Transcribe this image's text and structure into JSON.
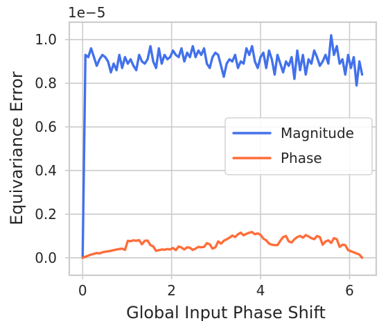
{
  "chart_data": {
    "type": "line",
    "title": "",
    "xlabel": "Global Input Phase Shift",
    "ylabel": "Equivariance Error",
    "offset_label": "1e−5",
    "xlim": [
      -0.3,
      6.6
    ],
    "ylim": [
      -0.08,
      1.08
    ],
    "xticks": [
      0,
      2,
      4,
      6
    ],
    "xtick_labels": [
      "0",
      "2",
      "4",
      "6"
    ],
    "yticks": [
      0.0,
      0.2,
      0.4,
      0.6,
      0.8,
      1.0
    ],
    "ytick_labels": [
      "0.0",
      "0.2",
      "0.4",
      "0.6",
      "0.8",
      "1.0"
    ],
    "grid": true,
    "legend_position": "center-right",
    "x": [
      0.0,
      0.063,
      0.127,
      0.19,
      0.254,
      0.317,
      0.381,
      0.444,
      0.508,
      0.571,
      0.635,
      0.698,
      0.762,
      0.825,
      0.889,
      0.952,
      1.016,
      1.079,
      1.143,
      1.206,
      1.27,
      1.333,
      1.397,
      1.46,
      1.524,
      1.587,
      1.651,
      1.714,
      1.778,
      1.841,
      1.905,
      1.968,
      2.032,
      2.095,
      2.159,
      2.222,
      2.286,
      2.349,
      2.412,
      2.476,
      2.539,
      2.603,
      2.666,
      2.73,
      2.793,
      2.857,
      2.92,
      2.984,
      3.047,
      3.111,
      3.174,
      3.238,
      3.301,
      3.365,
      3.428,
      3.492,
      3.555,
      3.619,
      3.682,
      3.746,
      3.809,
      3.873,
      3.936,
      4.0,
      4.063,
      4.127,
      4.19,
      4.253,
      4.317,
      4.38,
      4.444,
      4.507,
      4.571,
      4.634,
      4.698,
      4.761,
      4.825,
      4.888,
      4.952,
      5.015,
      5.079,
      5.142,
      5.206,
      5.269,
      5.333,
      5.396,
      5.46,
      5.523,
      5.587,
      5.65,
      5.714,
      5.777,
      5.841,
      5.904,
      5.968,
      6.031,
      6.095,
      6.158,
      6.222,
      6.283
    ],
    "series": [
      {
        "name": "Magnitude",
        "color": "#4271eb",
        "values": [
          0.0,
          0.93,
          0.92,
          0.96,
          0.92,
          0.88,
          0.91,
          0.93,
          0.92,
          0.9,
          0.85,
          0.89,
          0.86,
          0.93,
          0.87,
          0.92,
          0.89,
          0.91,
          0.88,
          0.86,
          0.93,
          0.9,
          0.89,
          0.91,
          0.97,
          0.9,
          0.87,
          0.96,
          0.89,
          0.93,
          0.91,
          0.92,
          0.95,
          0.93,
          0.92,
          0.96,
          0.9,
          0.94,
          0.92,
          0.97,
          0.92,
          0.95,
          0.93,
          0.96,
          0.89,
          0.87,
          0.92,
          0.94,
          0.93,
          0.88,
          0.83,
          0.89,
          0.91,
          0.9,
          0.93,
          0.87,
          0.9,
          0.89,
          0.96,
          0.93,
          0.97,
          0.9,
          0.87,
          0.92,
          0.94,
          0.87,
          0.95,
          0.91,
          0.84,
          0.93,
          0.89,
          0.85,
          0.9,
          0.88,
          0.92,
          0.82,
          0.95,
          0.86,
          0.93,
          0.84,
          0.91,
          0.89,
          0.95,
          0.92,
          0.88,
          0.9,
          0.93,
          0.89,
          1.02,
          0.93,
          0.97,
          0.89,
          0.91,
          0.84,
          0.93,
          0.87,
          0.92,
          0.79,
          0.9,
          0.84
        ],
        "highlights": []
      },
      {
        "name": "Phase",
        "color": "#ff6d3a",
        "values": [
          0.0,
          0.005,
          0.01,
          0.015,
          0.018,
          0.022,
          0.02,
          0.025,
          0.028,
          0.03,
          0.032,
          0.035,
          0.038,
          0.04,
          0.042,
          0.036,
          0.078,
          0.076,
          0.08,
          0.078,
          0.081,
          0.062,
          0.078,
          0.079,
          0.058,
          0.052,
          0.032,
          0.035,
          0.038,
          0.037,
          0.04,
          0.038,
          0.045,
          0.035,
          0.052,
          0.047,
          0.038,
          0.048,
          0.046,
          0.036,
          0.042,
          0.05,
          0.048,
          0.05,
          0.067,
          0.062,
          0.042,
          0.048,
          0.075,
          0.065,
          0.078,
          0.085,
          0.092,
          0.102,
          0.095,
          0.108,
          0.115,
          0.103,
          0.11,
          0.115,
          0.118,
          0.108,
          0.112,
          0.105,
          0.088,
          0.08,
          0.065,
          0.06,
          0.058,
          0.058,
          0.078,
          0.095,
          0.1,
          0.075,
          0.07,
          0.085,
          0.095,
          0.1,
          0.092,
          0.104,
          0.098,
          0.09,
          0.085,
          0.1,
          0.095,
          0.06,
          0.075,
          0.08,
          0.068,
          0.09,
          0.085,
          0.05,
          0.06,
          0.058,
          0.035,
          0.03,
          0.025,
          0.02,
          0.015,
          0.0
        ]
      }
    ]
  }
}
